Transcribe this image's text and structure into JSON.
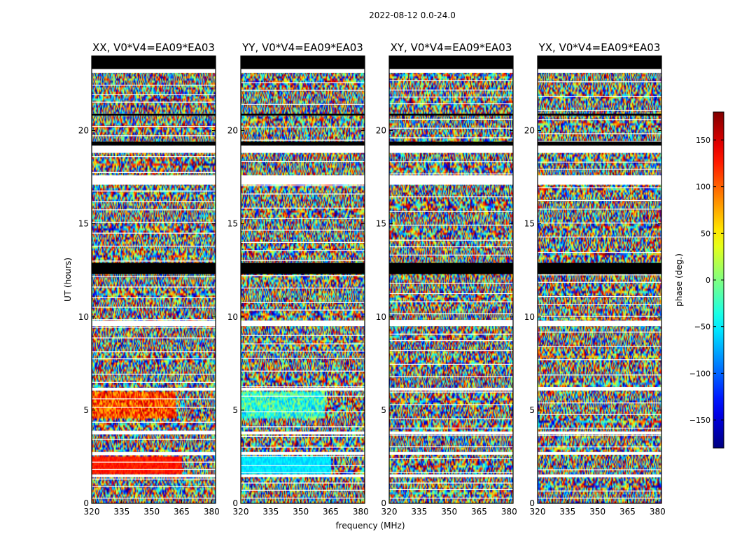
{
  "figure_title": "2022-08-12 0.0-24.0",
  "colors": {
    "colormap": "jet",
    "flagged": "#ffffff",
    "frame": "#000000"
  },
  "chart_data": [
    {
      "type": "heatmap",
      "title": "XX, V0*V4=EA09*EA03",
      "xlabel": "",
      "ylabel": "UT (hours)",
      "xlim": [
        320,
        382
      ],
      "ylim": [
        0,
        24
      ],
      "xticks": [
        "320",
        "335",
        "350",
        "365",
        "380"
      ],
      "yticks": [
        "0",
        "5",
        "10",
        "15",
        "20"
      ]
    },
    {
      "type": "heatmap",
      "title": "YY, V0*V4=EA09*EA03",
      "xlabel": "frequency (MHz)",
      "ylabel": "",
      "xlim": [
        320,
        382
      ],
      "ylim": [
        0,
        24
      ],
      "xticks": [
        "320",
        "335",
        "350",
        "365",
        "380"
      ],
      "yticks": [
        "0",
        "5",
        "10",
        "15",
        "20"
      ]
    },
    {
      "type": "heatmap",
      "title": "XY, V0*V4=EA09*EA03",
      "xlabel": "",
      "ylabel": "",
      "xlim": [
        320,
        382
      ],
      "ylim": [
        0,
        24
      ],
      "xticks": [
        "320",
        "335",
        "350",
        "365",
        "380"
      ],
      "yticks": [
        "0",
        "5",
        "10",
        "15",
        "20"
      ]
    },
    {
      "type": "heatmap",
      "title": "YX, V0*V4=EA09*EA03",
      "xlabel": "",
      "ylabel": "",
      "xlim": [
        320,
        382
      ],
      "ylim": [
        0,
        24
      ],
      "xticks": [
        "320",
        "335",
        "350",
        "365",
        "380"
      ],
      "yticks": [
        "0",
        "5",
        "10",
        "15",
        "20"
      ]
    }
  ],
  "colorbar": {
    "label": "phase (deg.)",
    "range": [
      -180,
      180
    ],
    "ticks": [
      "150",
      "100",
      "50",
      "0",
      "−50",
      "−100",
      "−150"
    ],
    "tick_values": [
      150,
      100,
      50,
      0,
      -50,
      -100,
      -150
    ]
  }
}
